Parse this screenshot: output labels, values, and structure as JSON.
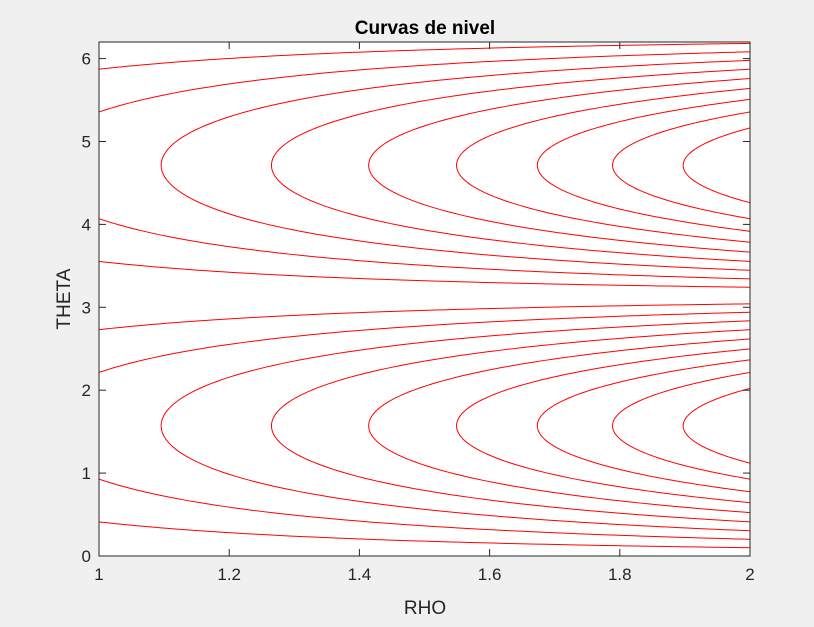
{
  "chart_data": {
    "type": "line",
    "title": "Curvas de nivel",
    "xlabel": "RHO",
    "ylabel": "THETA",
    "xlim": [
      1,
      2
    ],
    "ylim": [
      0,
      6.2
    ],
    "xticks": [
      1,
      1.2,
      1.4,
      1.6,
      1.8,
      2
    ],
    "xtick_labels": [
      "1",
      "1.2",
      "1.4",
      "1.6",
      "1.8",
      "2"
    ],
    "yticks": [
      0,
      1,
      2,
      3,
      4,
      5,
      6
    ],
    "ytick_labels": [
      "0",
      "1",
      "2",
      "3",
      "4",
      "5",
      "6"
    ],
    "grid": false,
    "legend": "none",
    "contour_color": "#ff0000",
    "axes_background": "#ffffff",
    "figure_background": "#f0f0f0",
    "surface": "z = rho^2 * sin(theta)",
    "levels": [
      -3.6,
      -3.2,
      -2.8,
      -2.4,
      -2.0,
      -1.6,
      -1.2,
      -0.8,
      -0.4,
      0.4,
      0.8,
      1.2,
      1.6,
      2.0,
      2.4,
      2.8,
      3.2,
      3.6
    ],
    "series": [
      {
        "level": 3.6,
        "vertex_x": 1.898,
        "vertex_y": 1.571
      },
      {
        "level": 3.2,
        "vertex_x": 1.789,
        "vertex_y": 1.571
      },
      {
        "level": 2.8,
        "vertex_x": 1.673,
        "vertex_y": 1.571
      },
      {
        "level": 2.4,
        "vertex_x": 1.549,
        "vertex_y": 1.571
      },
      {
        "level": 2.0,
        "vertex_x": 1.414,
        "vertex_y": 1.571
      },
      {
        "level": 1.6,
        "vertex_x": 1.265,
        "vertex_y": 1.571
      },
      {
        "level": 1.2,
        "vertex_x": 1.095,
        "vertex_y": 1.571
      },
      {
        "level": 0.8,
        "vertex_x": 1.0,
        "vertex_y": 0.927
      },
      {
        "level": 0.4,
        "vertex_x": 1.0,
        "vertex_y": 0.412
      },
      {
        "level": -0.4,
        "vertex_x": 1.0,
        "vertex_y": 3.554
      },
      {
        "level": -0.8,
        "vertex_x": 1.0,
        "vertex_y": 4.069
      },
      {
        "level": -1.2,
        "vertex_x": 1.095,
        "vertex_y": 4.712
      },
      {
        "level": -1.6,
        "vertex_x": 1.265,
        "vertex_y": 4.712
      },
      {
        "level": -2.0,
        "vertex_x": 1.414,
        "vertex_y": 4.712
      },
      {
        "level": -2.4,
        "vertex_x": 1.549,
        "vertex_y": 4.712
      },
      {
        "level": -2.8,
        "vertex_x": 1.673,
        "vertex_y": 4.712
      },
      {
        "level": -3.2,
        "vertex_x": 1.789,
        "vertex_y": 4.712
      },
      {
        "level": -3.6,
        "vertex_x": 1.898,
        "vertex_y": 4.712
      }
    ]
  }
}
